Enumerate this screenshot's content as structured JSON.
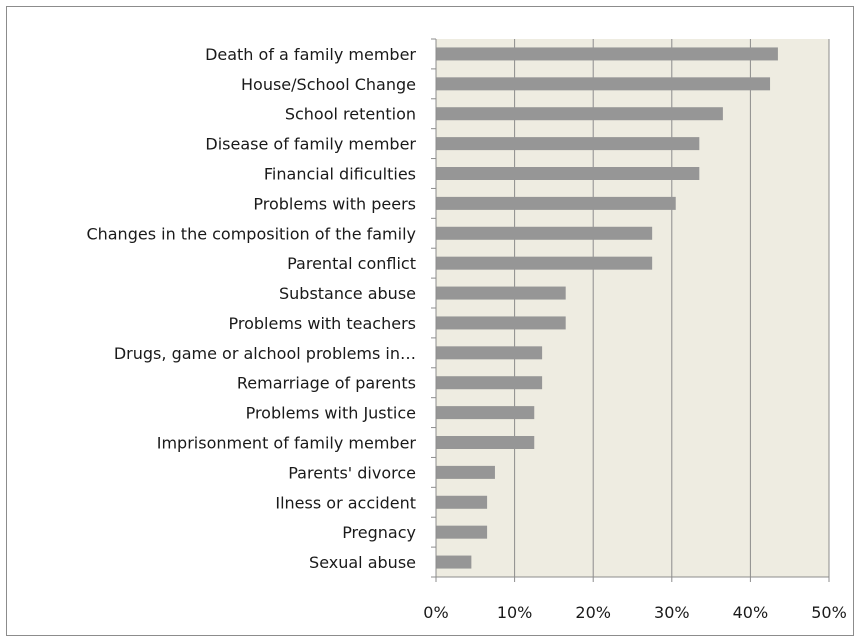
{
  "chart_data": {
    "type": "bar",
    "orientation": "horizontal",
    "categories": [
      "Death of a family member",
      "House/School Change",
      "School retention",
      "Disease of family member",
      "Financial dificulties",
      "Problems with peers",
      "Changes in the composition of the family",
      "Parental conflict",
      "Substance abuse",
      "Problems with teachers",
      "Drugs, game or alchool problems in…",
      "Remarriage of parents",
      "Problems with Justice",
      "Imprisonment of family member",
      "Parents' divorce",
      "Ilness or accident",
      "Pregnacy",
      "Sexual abuse"
    ],
    "values": [
      43.5,
      42.5,
      36.5,
      33.5,
      33.5,
      30.5,
      27.5,
      27.5,
      16.5,
      16.5,
      13.5,
      13.5,
      12.5,
      12.5,
      7.5,
      6.5,
      6.5,
      4.5
    ],
    "x_ticks": [
      "0%",
      "10%",
      "20%",
      "30%",
      "40%",
      "50%"
    ],
    "xlim": [
      0,
      50
    ],
    "title": "",
    "xlabel": "",
    "ylabel": "",
    "grid": true,
    "legend": "none",
    "colors": {
      "bar": "#969696",
      "plot_bg": "#eeece1",
      "grid": "#8c8c8c",
      "axis": "#8c8c8c"
    }
  }
}
